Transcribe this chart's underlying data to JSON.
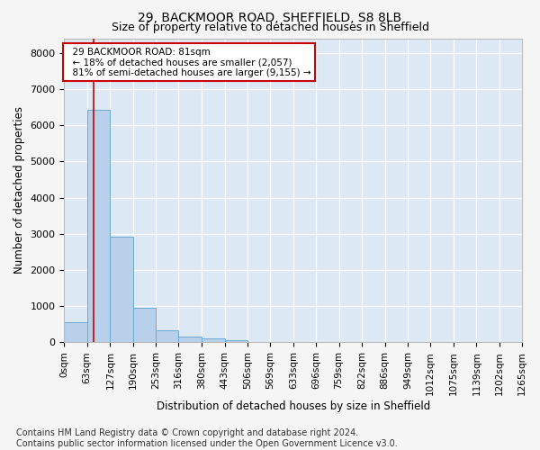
{
  "title1": "29, BACKMOOR ROAD, SHEFFIELD, S8 8LB",
  "title2": "Size of property relative to detached houses in Sheffield",
  "xlabel": "Distribution of detached houses by size in Sheffield",
  "ylabel": "Number of detached properties",
  "footer_line1": "Contains HM Land Registry data © Crown copyright and database right 2024.",
  "footer_line2": "Contains public sector information licensed under the Open Government Licence v3.0.",
  "annotation_line1": "29 BACKMOOR ROAD: 81sqm",
  "annotation_line2": "← 18% of detached houses are smaller (2,057)",
  "annotation_line3": "81% of semi-detached houses are larger (9,155) →",
  "bar_edges": [
    0,
    63,
    127,
    190,
    253,
    316,
    380,
    443,
    506,
    569,
    633,
    696,
    759,
    822,
    886,
    949,
    1012,
    1075,
    1139,
    1202,
    1265
  ],
  "bar_heights": [
    550,
    6430,
    2930,
    960,
    330,
    155,
    100,
    70,
    0,
    0,
    0,
    0,
    0,
    0,
    0,
    0,
    0,
    0,
    0,
    0
  ],
  "bar_color": "#b8d0ea",
  "bar_edgecolor": "#6aaad4",
  "property_line_x": 81,
  "property_line_color": "#cc0000",
  "annotation_box_edgecolor": "#cc0000",
  "annotation_box_facecolor": "#ffffff",
  "ylim": [
    0,
    8400
  ],
  "yticks": [
    0,
    1000,
    2000,
    3000,
    4000,
    5000,
    6000,
    7000,
    8000
  ],
  "background_color": "#dde8f5",
  "grid_color": "#ffffff",
  "title1_fontsize": 10,
  "title2_fontsize": 9,
  "xlabel_fontsize": 8.5,
  "ylabel_fontsize": 8.5,
  "footer_fontsize": 7,
  "tick_fontsize": 7.5,
  "ytick_fontsize": 8
}
